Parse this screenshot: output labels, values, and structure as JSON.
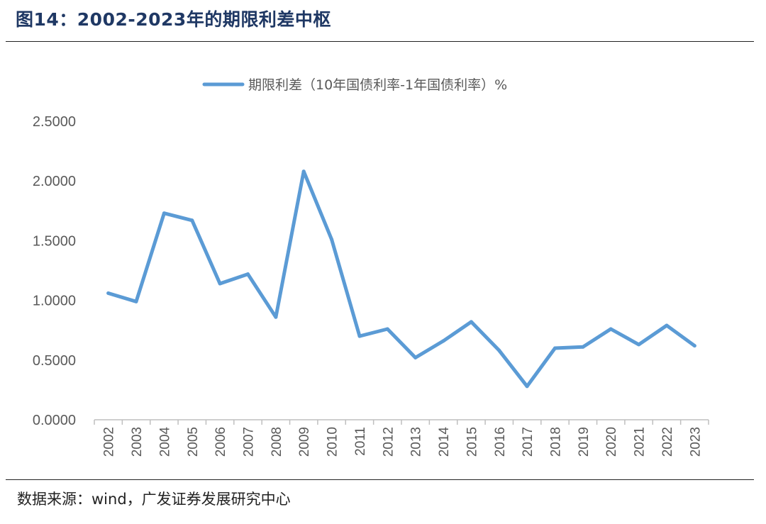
{
  "figure": {
    "title": "图14：2002-2023年的期限利差中枢",
    "source": "数据来源：wind，广发证券发展研究中心"
  },
  "chart_data": {
    "type": "line",
    "title": "",
    "xlabel": "",
    "ylabel": "",
    "categories": [
      "2002",
      "2003",
      "2004",
      "2005",
      "2006",
      "2007",
      "2008",
      "2009",
      "2010",
      "2011",
      "2012",
      "2013",
      "2014",
      "2015",
      "2016",
      "2017",
      "2018",
      "2019",
      "2020",
      "2021",
      "2022",
      "2023"
    ],
    "series": [
      {
        "name": "期限利差（10年国债利率-1年国债利率）%",
        "color": "#5b9bd5",
        "values": [
          1.06,
          0.99,
          1.73,
          1.67,
          1.14,
          1.22,
          0.86,
          2.08,
          1.51,
          0.7,
          0.76,
          0.52,
          0.66,
          0.82,
          0.58,
          0.28,
          0.6,
          0.61,
          0.76,
          0.63,
          0.79,
          0.62
        ]
      }
    ],
    "yticks": [
      "0.0000",
      "0.5000",
      "1.0000",
      "1.5000",
      "2.0000",
      "2.5000"
    ],
    "ylim": [
      0,
      2.5
    ],
    "grid": false,
    "legend_position": "top-center",
    "x_tick_rotation": "vertical"
  }
}
